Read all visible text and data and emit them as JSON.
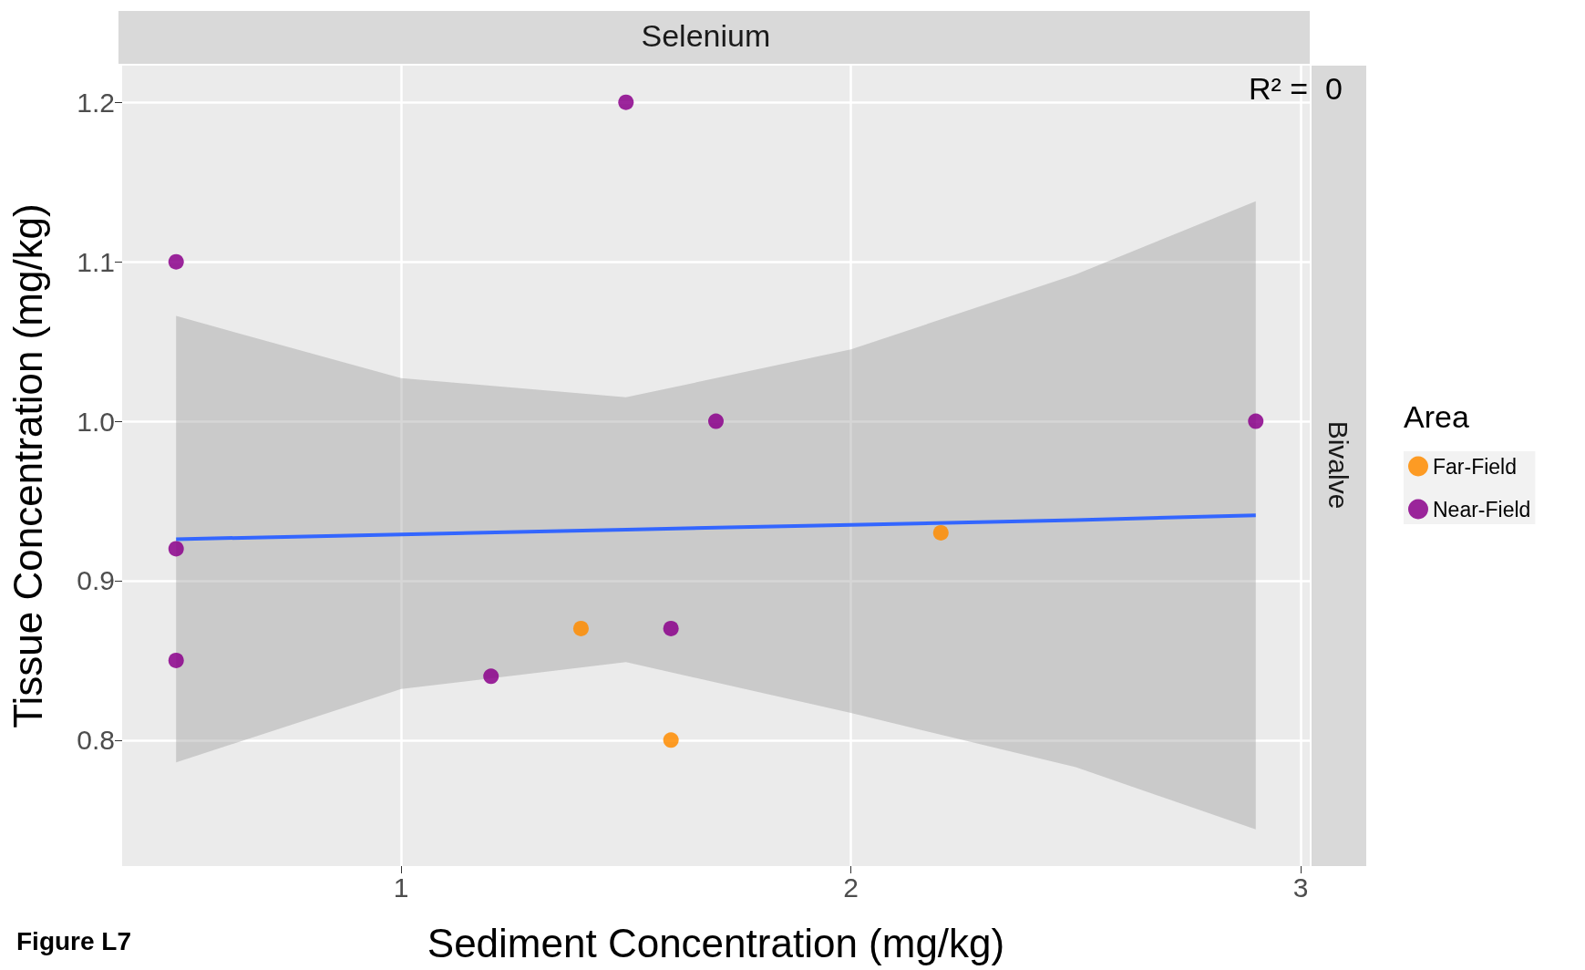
{
  "chart_data": {
    "type": "scatter",
    "title": "Selenium",
    "xlabel": "Sediment Concentration (mg/kg)",
    "ylabel": "Tissue Concentration (mg/kg)",
    "legend_title": "Area",
    "annotations": [
      "R² =  0",
      "Bivalve",
      "Figure L7"
    ],
    "series": [
      {
        "name": "Far-Field",
        "color": "#ff8c00",
        "x": [
          1.4,
          1.6,
          2.2
        ],
        "values": [
          0.87,
          0.8,
          0.93
        ]
      },
      {
        "name": "Near-Field",
        "color": "#8b008b",
        "x": [
          0.5,
          0.5,
          0.5,
          1.2,
          1.5,
          1.6,
          1.7,
          2.9
        ],
        "values": [
          1.1,
          0.92,
          0.85,
          0.84,
          1.2,
          0.87,
          1.0,
          1.0
        ]
      },
      {
        "type": "line",
        "color": "#3366ff",
        "marker": "none",
        "x": [
          0.5,
          1,
          1.5,
          2,
          2.5,
          2.9
        ],
        "values": [
          0.926,
          0.929,
          0.932,
          0.935,
          0.938,
          0.941
        ],
        "lower": [
          0.786,
          0.832,
          0.849,
          0.817,
          0.783,
          0.744
        ],
        "upper": [
          1.066,
          1.027,
          1.015,
          1.045,
          1.092,
          1.138
        ]
      }
    ],
    "xlim": [
      0.38,
      3.02
    ],
    "ylim": [
      0.721,
      1.223
    ],
    "xticks": [
      1,
      2,
      3
    ],
    "yticks": [
      {
        "value": 0.8,
        "label": "0.8"
      },
      {
        "value": 0.9,
        "label": "0.9"
      },
      {
        "value": 1,
        "label": "1.0"
      },
      {
        "value": 1.1,
        "label": "1.1"
      },
      {
        "value": 1.2,
        "label": "1.2"
      }
    ],
    "grid": true,
    "legend": "right",
    "marker": "circle"
  }
}
